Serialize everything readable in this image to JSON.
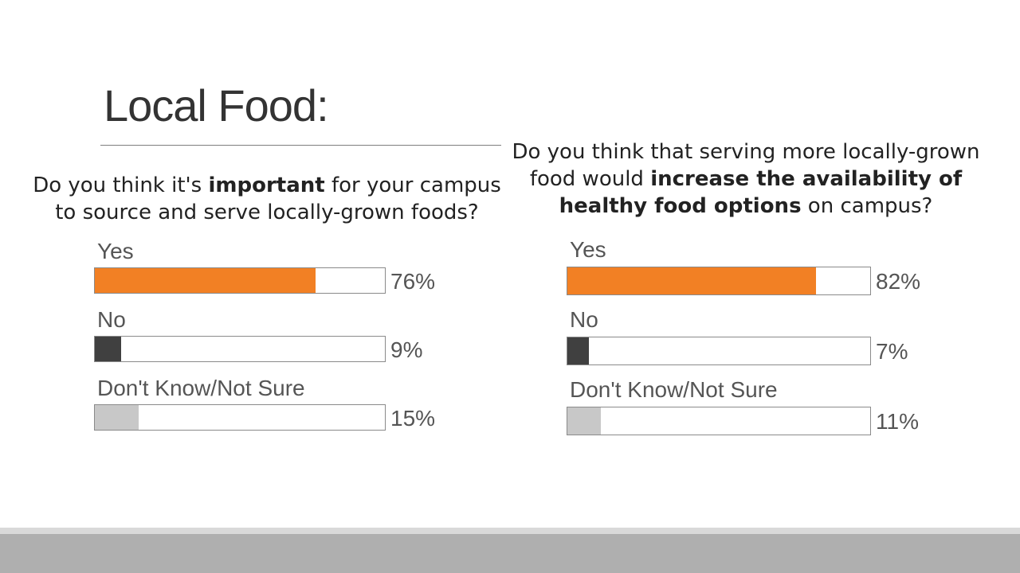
{
  "slide": {
    "title": "Local Food:"
  },
  "chart_data": [
    {
      "type": "bar",
      "title_parts": [
        {
          "text": "Do you think it's ",
          "bold": false
        },
        {
          "text": "important",
          "bold": true
        },
        {
          "text": " for your campus to source and serve locally-grown foods?",
          "bold": false
        }
      ],
      "categories": [
        "Yes",
        "No",
        "Don't Know/Not Sure"
      ],
      "values": [
        76,
        9,
        15
      ],
      "value_labels": [
        "76%",
        "9%",
        "15%"
      ],
      "colors": [
        "#f28024",
        "#404040",
        "#c8c8c8"
      ],
      "ylim": [
        0,
        100
      ]
    },
    {
      "type": "bar",
      "title_parts": [
        {
          "text": "Do you think that serving more locally-grown food would ",
          "bold": false
        },
        {
          "text": "increase the availability of healthy food options",
          "bold": true
        },
        {
          "text": " on campus?",
          "bold": false
        }
      ],
      "categories": [
        "Yes",
        "No",
        "Don't Know/Not Sure"
      ],
      "values": [
        82,
        7,
        11
      ],
      "value_labels": [
        "82%",
        "7%",
        "11%"
      ],
      "colors": [
        "#f28024",
        "#404040",
        "#c8c8c8"
      ],
      "ylim": [
        0,
        100
      ]
    }
  ]
}
